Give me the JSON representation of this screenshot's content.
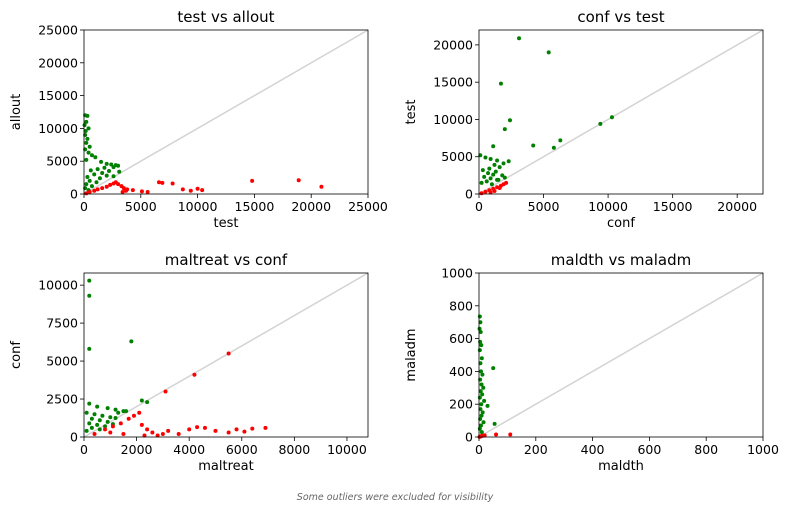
{
  "footnote": "Some outliers were excluded for visibility",
  "colors": {
    "above": "#008000",
    "below": "#ff0000",
    "diagonal": "#d3d3d3"
  },
  "chart_data": [
    {
      "type": "scatter",
      "title": "test vs allout",
      "xlabel": "test",
      "ylabel": "allout",
      "xlim": [
        0,
        25000
      ],
      "ylim": [
        0,
        25000
      ],
      "xticks": [
        0,
        5000,
        10000,
        15000,
        20000,
        25000
      ],
      "yticks": [
        0,
        5000,
        10000,
        15000,
        20000,
        25000
      ],
      "xtick_labels": [
        "0",
        "5000",
        "10000",
        "15000",
        "20000",
        "25000"
      ],
      "ytick_labels": [
        "0",
        "5000",
        "10000",
        "15000",
        "20000",
        "25000"
      ],
      "series": [
        {
          "color": "#008000",
          "points": [
            [
              100,
              12000
            ],
            [
              300,
              11900
            ],
            [
              200,
              11000
            ],
            [
              50,
              10500
            ],
            [
              400,
              10000
            ],
            [
              150,
              9600
            ],
            [
              100,
              9000
            ],
            [
              300,
              8400
            ],
            [
              200,
              7800
            ],
            [
              500,
              7200
            ],
            [
              100,
              6800
            ],
            [
              400,
              6300
            ],
            [
              700,
              5900
            ],
            [
              1000,
              5600
            ],
            [
              200,
              5200
            ],
            [
              1500,
              4900
            ],
            [
              2000,
              4600
            ],
            [
              2400,
              4500
            ],
            [
              2800,
              4400
            ],
            [
              3000,
              4300
            ],
            [
              2600,
              4100
            ],
            [
              1800,
              4000
            ],
            [
              1200,
              3800
            ],
            [
              600,
              3600
            ],
            [
              2200,
              3500
            ],
            [
              3100,
              3400
            ],
            [
              1600,
              3200
            ],
            [
              900,
              3000
            ],
            [
              2000,
              2800
            ],
            [
              300,
              2600
            ],
            [
              1400,
              2400
            ],
            [
              2600,
              2700
            ],
            [
              500,
              2000
            ],
            [
              1100,
              1800
            ],
            [
              200,
              1500
            ],
            [
              700,
              1200
            ],
            [
              100,
              900
            ],
            [
              400,
              600
            ]
          ]
        },
        {
          "color": "#ff0000",
          "points": [
            [
              200,
              100
            ],
            [
              500,
              300
            ],
            [
              900,
              500
            ],
            [
              1200,
              700
            ],
            [
              1600,
              900
            ],
            [
              2000,
              1100
            ],
            [
              2300,
              1400
            ],
            [
              2600,
              1600
            ],
            [
              2800,
              1800
            ],
            [
              3000,
              1500
            ],
            [
              3300,
              1200
            ],
            [
              3500,
              900
            ],
            [
              3800,
              700
            ],
            [
              3700,
              500
            ],
            [
              3400,
              300
            ],
            [
              4300,
              600
            ],
            [
              5100,
              400
            ],
            [
              5600,
              300
            ],
            [
              6600,
              1800
            ],
            [
              6900,
              1700
            ],
            [
              7800,
              1600
            ],
            [
              8700,
              700
            ],
            [
              9400,
              500
            ],
            [
              10000,
              800
            ],
            [
              10400,
              600
            ],
            [
              14800,
              2000
            ],
            [
              18900,
              2100
            ],
            [
              20900,
              1100
            ]
          ]
        }
      ]
    },
    {
      "type": "scatter",
      "title": "conf vs test",
      "xlabel": "conf",
      "ylabel": "test",
      "xlim": [
        0,
        22000
      ],
      "ylim": [
        0,
        22000
      ],
      "xticks": [
        0,
        5000,
        10000,
        15000,
        20000
      ],
      "yticks": [
        0,
        5000,
        10000,
        15000,
        20000
      ],
      "xtick_labels": [
        "0",
        "5000",
        "10000",
        "15000",
        "20000"
      ],
      "ytick_labels": [
        "0",
        "5000",
        "10000",
        "15000",
        "20000"
      ],
      "series": [
        {
          "color": "#008000",
          "points": [
            [
              3100,
              20900
            ],
            [
              5400,
              19000
            ],
            [
              1700,
              14800
            ],
            [
              2400,
              9900
            ],
            [
              2000,
              8700
            ],
            [
              4200,
              6500
            ],
            [
              6300,
              7200
            ],
            [
              5800,
              6200
            ],
            [
              1100,
              6400
            ],
            [
              9400,
              9400
            ],
            [
              10300,
              10300
            ],
            [
              100,
              5200
            ],
            [
              500,
              4900
            ],
            [
              900,
              4700
            ],
            [
              1400,
              4500
            ],
            [
              2300,
              4400
            ],
            [
              1900,
              4100
            ],
            [
              1200,
              3900
            ],
            [
              1600,
              3600
            ],
            [
              800,
              3400
            ],
            [
              300,
              3200
            ],
            [
              1300,
              3000
            ],
            [
              700,
              2800
            ],
            [
              1100,
              2600
            ],
            [
              1800,
              2500
            ],
            [
              400,
              2300
            ],
            [
              900,
              2100
            ],
            [
              1400,
              1900
            ],
            [
              600,
              1700
            ],
            [
              200,
              1500
            ],
            [
              1000,
              1300
            ],
            [
              1500,
              1900
            ],
            [
              2000,
              2200
            ]
          ]
        },
        {
          "color": "#ff0000",
          "points": [
            [
              200,
              100
            ],
            [
              500,
              300
            ],
            [
              800,
              500
            ],
            [
              1100,
              700
            ],
            [
              1400,
              900
            ],
            [
              1700,
              1100
            ],
            [
              1900,
              1300
            ],
            [
              2100,
              1500
            ],
            [
              1600,
              800
            ],
            [
              1200,
              400
            ],
            [
              900,
              200
            ]
          ]
        }
      ]
    },
    {
      "type": "scatter",
      "title": "maltreat vs conf",
      "xlabel": "maltreat",
      "ylabel": "conf",
      "xlim": [
        0,
        10800
      ],
      "ylim": [
        0,
        10800
      ],
      "xticks": [
        0,
        2000,
        4000,
        6000,
        8000,
        10000
      ],
      "yticks": [
        0,
        2500,
        5000,
        7500,
        10000
      ],
      "xtick_labels": [
        "0",
        "2000",
        "4000",
        "6000",
        "8000",
        "10000"
      ],
      "ytick_labels": [
        "0",
        "2500",
        "5000",
        "7500",
        "10000"
      ],
      "series": [
        {
          "color": "#008000",
          "points": [
            [
              200,
              10300
            ],
            [
              200,
              9300
            ],
            [
              1800,
              6300
            ],
            [
              200,
              5800
            ],
            [
              200,
              2200
            ],
            [
              500,
              2000
            ],
            [
              900,
              1900
            ],
            [
              1200,
              1800
            ],
            [
              1500,
              1700
            ],
            [
              2200,
              2400
            ],
            [
              2400,
              2300
            ],
            [
              100,
              1600
            ],
            [
              400,
              1500
            ],
            [
              700,
              1400
            ],
            [
              1000,
              1300
            ],
            [
              1300,
              1600
            ],
            [
              1600,
              1700
            ],
            [
              300,
              1200
            ],
            [
              600,
              1100
            ],
            [
              900,
              1000
            ],
            [
              1200,
              1250
            ],
            [
              200,
              900
            ],
            [
              500,
              800
            ],
            [
              800,
              700
            ],
            [
              1100,
              850
            ],
            [
              300,
              600
            ],
            [
              600,
              500
            ],
            [
              100,
              400
            ]
          ]
        },
        {
          "color": "#ff0000",
          "points": [
            [
              5500,
              5500
            ],
            [
              4200,
              4100
            ],
            [
              3100,
              3000
            ],
            [
              400,
              200
            ],
            [
              800,
              500
            ],
            [
              1100,
              700
            ],
            [
              1400,
              900
            ],
            [
              1700,
              1200
            ],
            [
              1900,
              1400
            ],
            [
              2100,
              1600
            ],
            [
              1000,
              300
            ],
            [
              1500,
              200
            ],
            [
              2200,
              800
            ],
            [
              2400,
              500
            ],
            [
              2600,
              300
            ],
            [
              2800,
              100
            ],
            [
              3200,
              400
            ],
            [
              3600,
              200
            ],
            [
              4000,
              500
            ],
            [
              4300,
              650
            ],
            [
              4600,
              600
            ],
            [
              5000,
              400
            ],
            [
              5500,
              300
            ],
            [
              5800,
              500
            ],
            [
              6100,
              350
            ],
            [
              6400,
              550
            ],
            [
              6900,
              600
            ],
            [
              2300,
              100
            ],
            [
              3000,
              200
            ]
          ]
        }
      ]
    },
    {
      "type": "scatter",
      "title": "maldth vs maladm",
      "xlabel": "maldth",
      "ylabel": "maladm",
      "xlim": [
        0,
        1000
      ],
      "ylim": [
        0,
        1000
      ],
      "xticks": [
        0,
        200,
        400,
        600,
        800,
        1000
      ],
      "yticks": [
        0,
        200,
        400,
        600,
        800,
        1000
      ],
      "xtick_labels": [
        "0",
        "200",
        "400",
        "600",
        "800",
        "1000"
      ],
      "ytick_labels": [
        "0",
        "200",
        "400",
        "600",
        "800",
        "1000"
      ],
      "series": [
        {
          "color": "#008000",
          "points": [
            [
              3,
              735
            ],
            [
              5,
              700
            ],
            [
              2,
              660
            ],
            [
              6,
              640
            ],
            [
              4,
              580
            ],
            [
              8,
              560
            ],
            [
              3,
              530
            ],
            [
              10,
              480
            ],
            [
              5,
              450
            ],
            [
              50,
              420
            ],
            [
              7,
              400
            ],
            [
              12,
              380
            ],
            [
              4,
              350
            ],
            [
              9,
              320
            ],
            [
              15,
              300
            ],
            [
              6,
              280
            ],
            [
              11,
              260
            ],
            [
              3,
              240
            ],
            [
              18,
              220
            ],
            [
              8,
              200
            ],
            [
              30,
              190
            ],
            [
              5,
              170
            ],
            [
              13,
              150
            ],
            [
              9,
              130
            ],
            [
              4,
              110
            ],
            [
              16,
              90
            ],
            [
              7,
              70
            ],
            [
              55,
              80
            ],
            [
              3,
              50
            ],
            [
              10,
              30
            ]
          ]
        },
        {
          "color": "#ff0000",
          "points": [
            [
              2,
              1
            ],
            [
              5,
              3
            ],
            [
              8,
              5
            ],
            [
              12,
              8
            ],
            [
              60,
              15
            ],
            [
              110,
              15
            ],
            [
              20,
              10
            ]
          ]
        }
      ]
    }
  ]
}
